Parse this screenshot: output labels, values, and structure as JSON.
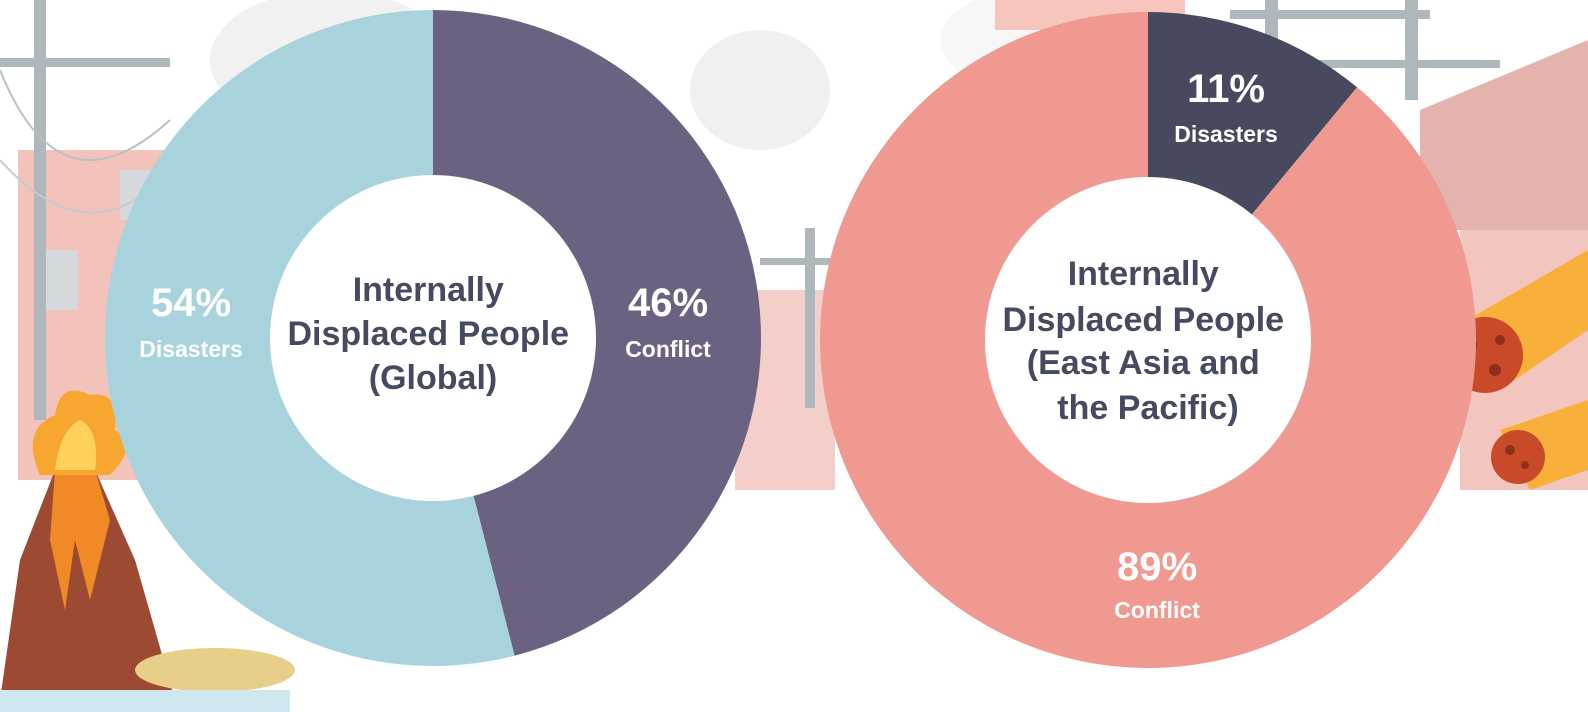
{
  "chart_data": [
    {
      "type": "pie",
      "title": "Internally Displaced People (Global)",
      "title_lines": [
        "Internally",
        "Displaced People",
        "(Global)"
      ],
      "slices": [
        {
          "label": "Conflict",
          "value": 46,
          "value_text": "46%",
          "color": "#6a6280"
        },
        {
          "label": "Disasters",
          "value": 54,
          "value_text": "54%",
          "color": "#a8d3dd"
        }
      ]
    },
    {
      "type": "pie",
      "title": "Internally Displaced People (East Asia and the Pacific)",
      "title_lines": [
        "Internally",
        "Displaced People",
        "(East Asia and",
        "the Pacific)"
      ],
      "slices": [
        {
          "label": "Disasters",
          "value": 11,
          "value_text": "11%",
          "color": "#474a5e"
        },
        {
          "label": "Conflict",
          "value": 89,
          "value_text": "89%",
          "color": "#ef9990"
        }
      ]
    }
  ],
  "colors": {
    "title_text": "#464a60",
    "label_text": "#ffffff",
    "background_accent": "#f2c6bf",
    "pole": "#aeb7bc"
  },
  "decorations": [
    "power-pole",
    "ruined-building",
    "volcano",
    "smoke-cloud",
    "meteor"
  ]
}
